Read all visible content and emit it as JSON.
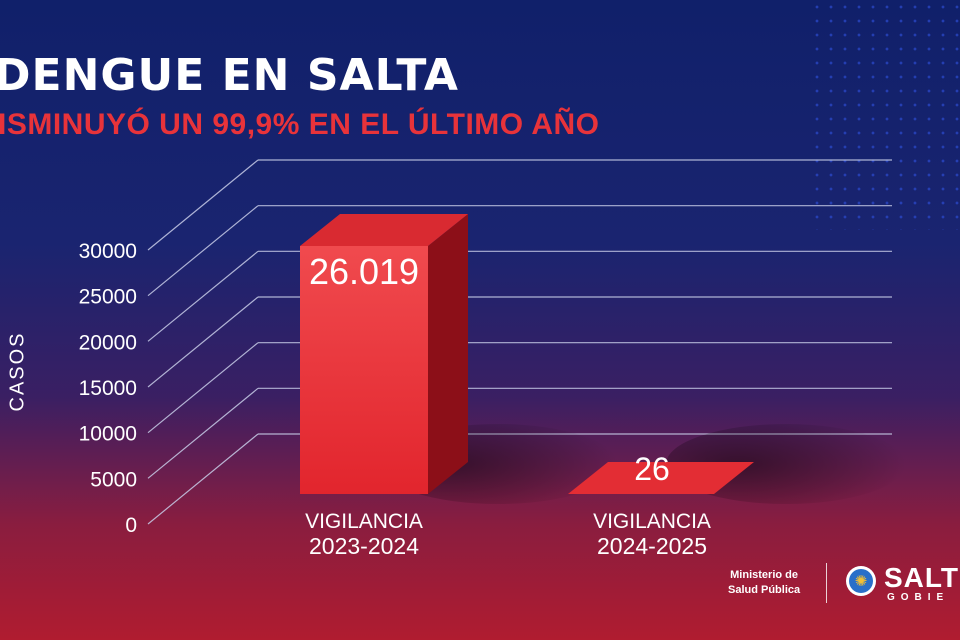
{
  "header": {
    "title": "DENGUE EN SALTA",
    "subtitle": "ISMINUYÓ UN 99,9% EN EL ÚLTIMO AÑO"
  },
  "chart_data": {
    "type": "bar",
    "title": "DENGUE EN SALTA",
    "subtitle": "ISMINUYÓ UN 99,9% EN EL ÚLTIMO AÑO",
    "xlabel": "",
    "ylabel": "CASOS",
    "ylim": [
      0,
      30000
    ],
    "yticks": [
      "0",
      "5000",
      "10000",
      "15000",
      "20000",
      "25000",
      "30000"
    ],
    "categories": [
      "VIGILANCIA\n2023-2024",
      "VIGILANCIA\n2024-2025"
    ],
    "values": [
      26019,
      26
    ],
    "value_labels": [
      "26.019",
      "26"
    ],
    "grid": true,
    "bar_color": "#e8303a"
  },
  "footer": {
    "ministry": "Ministerio de\nSalud Pública",
    "brand": "SALT",
    "brand_sub": "GOBIE"
  }
}
